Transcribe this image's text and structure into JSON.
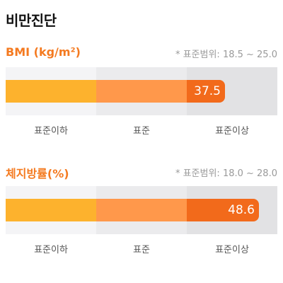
{
  "page": {
    "title": "비만진단"
  },
  "bmi": {
    "title": "BMI (kg/m²)",
    "range_note": "* 표준범위: 18.5 ~ 25.0",
    "value": "37.5",
    "zones": [
      "표준이하",
      "표준",
      "표준이상"
    ]
  },
  "body_fat": {
    "title": "체지방률(%)",
    "range_note": "* 표준범위: 18.0 ~ 28.0",
    "value": "48.6",
    "zones": [
      "표준이하",
      "표준",
      "표준이상"
    ]
  },
  "colors": {
    "accent": "#f47a20",
    "below_standard": "#fdb22d",
    "standard": "#ff984b",
    "above_standard": "#f26a1b"
  }
}
